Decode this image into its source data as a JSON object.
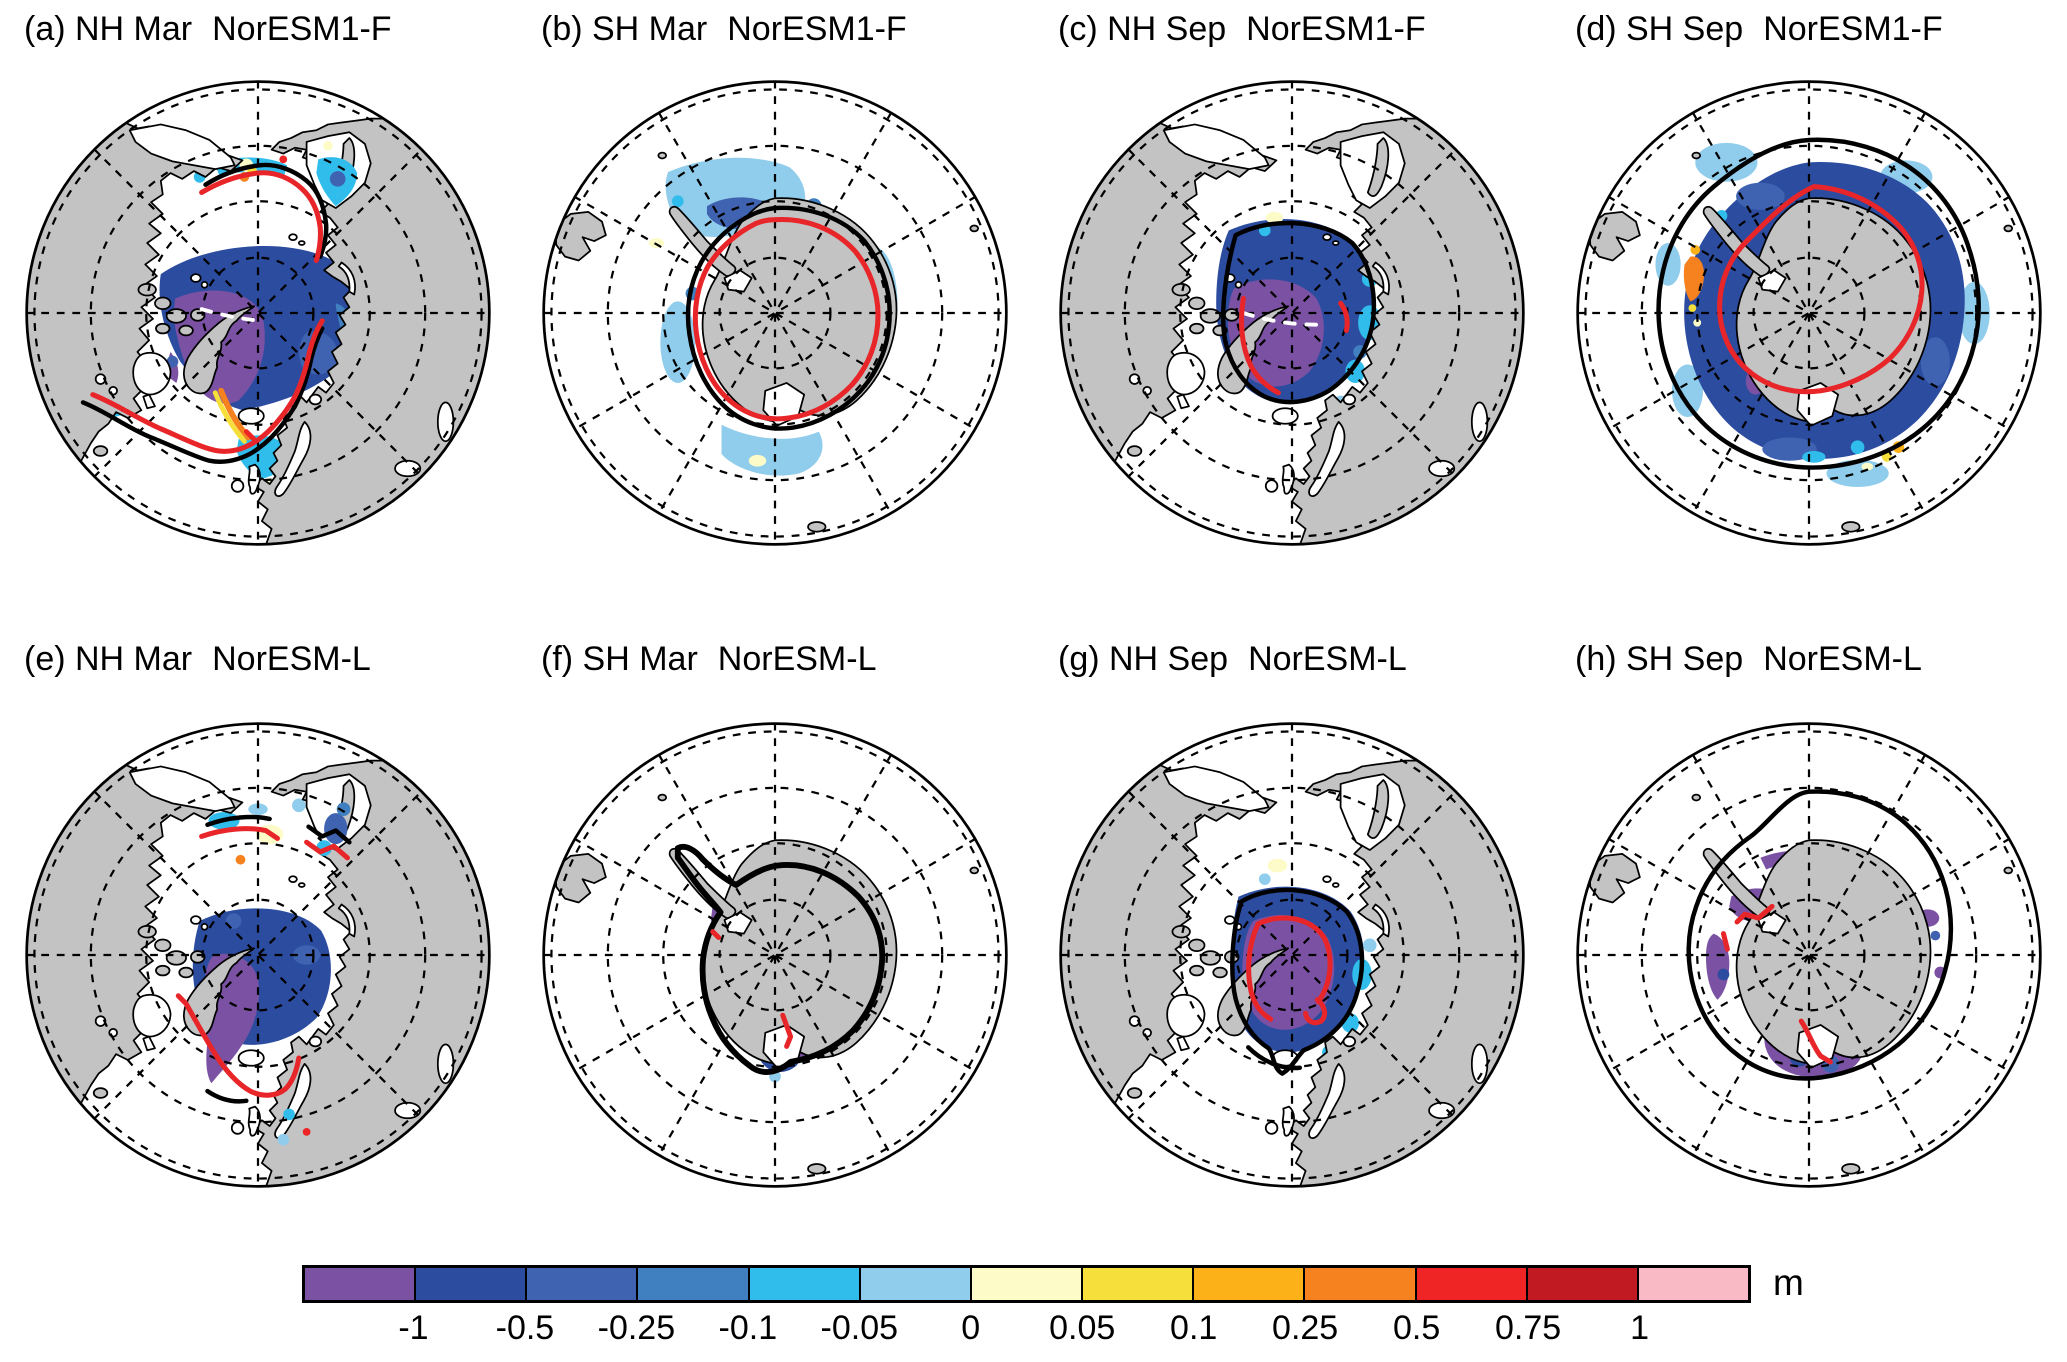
{
  "figure": {
    "panels": [
      {
        "id": "a",
        "title_left": "(a) NH Mar",
        "model": "NorESM1-F"
      },
      {
        "id": "b",
        "title_left": "(b) SH Mar",
        "model": "NorESM1-F"
      },
      {
        "id": "c",
        "title_left": "(c) NH Sep",
        "model": "NorESM1-F"
      },
      {
        "id": "d",
        "title_left": "(d) SH Sep",
        "model": "NorESM1-F"
      },
      {
        "id": "e",
        "title_left": "(e) NH Mar",
        "model": "NorESM-L"
      },
      {
        "id": "f",
        "title_left": "(f) SH Mar",
        "model": "NorESM-L"
      },
      {
        "id": "g",
        "title_left": "(g) NH Sep",
        "model": "NorESM-L"
      },
      {
        "id": "h",
        "title_left": "(h) SH Sep",
        "model": "NorESM-L"
      }
    ],
    "colorbar": {
      "unit": "m",
      "tick_labels": [
        "-1",
        "-0.5",
        "-0.25",
        "-0.1",
        "-0.05",
        "0",
        "0.05",
        "0.1",
        "0.25",
        "0.5",
        "0.75",
        "1"
      ],
      "segment_colors": [
        "#7b52a3",
        "#2c4ca0",
        "#3f63b0",
        "#4080c0",
        "#30bdec",
        "#90cdec",
        "#fdfcc8",
        "#f6df3a",
        "#fbb117",
        "#f5821f",
        "#ee2524",
        "#c21a22",
        "#f9b9c5"
      ]
    },
    "map_colors": {
      "land": "#c3c3c3",
      "ocean": "#ffffff",
      "contour_black": "#000000",
      "contour_red": "#e8262a"
    }
  }
}
